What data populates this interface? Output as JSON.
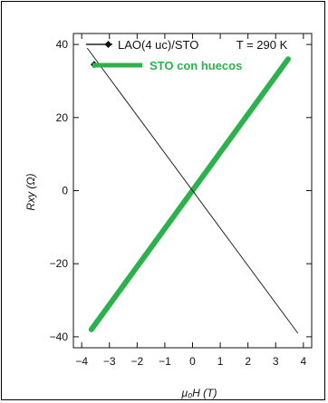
{
  "chart_data": {
    "type": "line",
    "xlabel": "μ₀H (T)",
    "ylabel": "Rxy (Ω)",
    "xlim": [
      -4.3,
      4.3
    ],
    "ylim": [
      -43,
      43
    ],
    "xticks": [
      -4,
      -3,
      -2,
      -1,
      0,
      1,
      2,
      3,
      4
    ],
    "yticks": [
      -40,
      -20,
      0,
      20,
      40
    ],
    "xtick_labels": [
      "−4",
      "−3",
      "−2",
      "−1",
      "0",
      "1",
      "2",
      "3",
      "4"
    ],
    "ytick_labels": [
      "−40",
      "−20",
      "0",
      "20",
      "40"
    ],
    "legend_position": "top",
    "annotation": "T = 290 K",
    "series": [
      {
        "name": "LAO(4 uc)/STO",
        "color": "#222222",
        "x": [
          -3.8,
          3.8
        ],
        "y": [
          39,
          -39
        ],
        "marker_point": [
          -3.55,
          34.5
        ]
      },
      {
        "name": "STO con huecos",
        "color": "#2bb24c",
        "x": [
          -3.65,
          3.45
        ],
        "y": [
          -38,
          36
        ]
      }
    ]
  }
}
